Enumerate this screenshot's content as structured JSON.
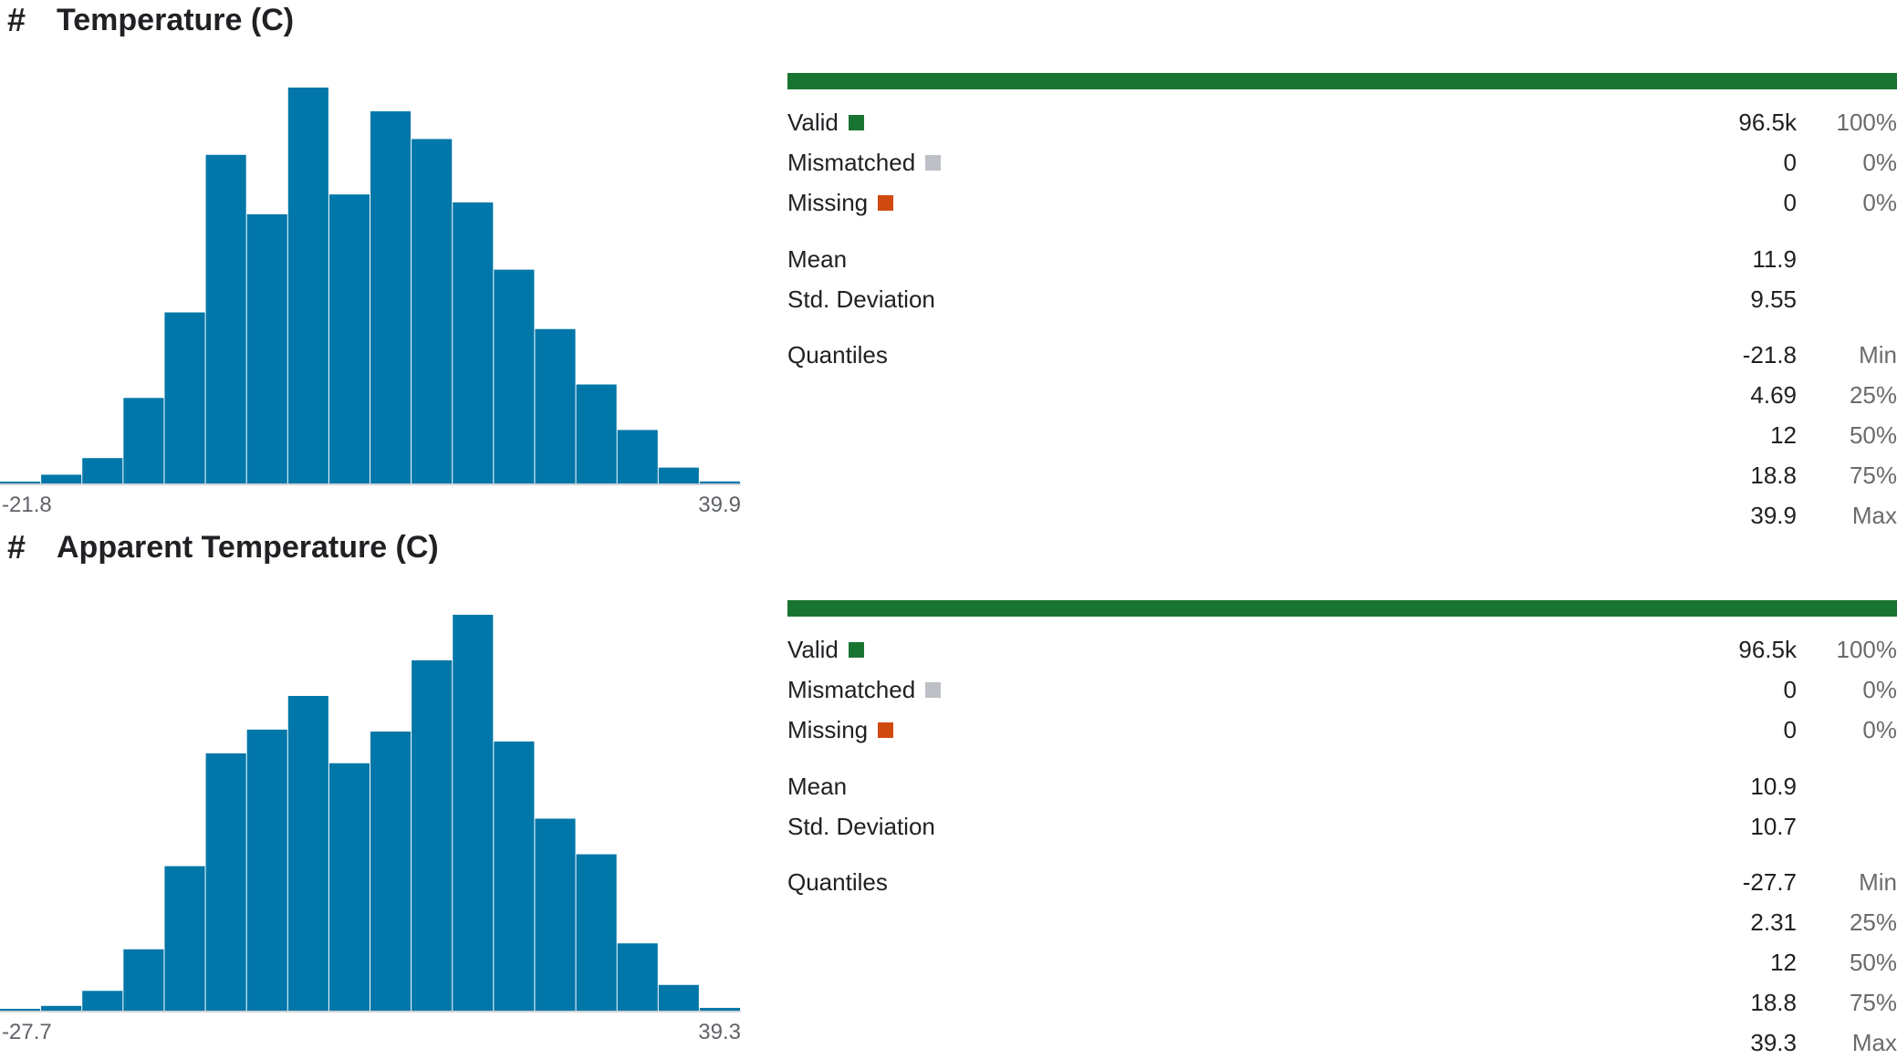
{
  "columns": [
    {
      "title": "Temperature (C)",
      "type_icon": "hash-icon",
      "range": {
        "min": "-21.8",
        "max": "39.9"
      },
      "histogram": [
        0.3,
        2.2,
        6.4,
        21.6,
        43.2,
        83.0,
        68.0,
        100.0,
        73.0,
        94.0,
        87.0,
        71.0,
        54.0,
        39.0,
        25.0,
        13.5,
        4.0,
        0.5
      ],
      "bar_color": "#0077a8",
      "stats": {
        "valid": {
          "label": "Valid",
          "value": "96.5k",
          "pct": "100%",
          "color": "#1a7431"
        },
        "mismatched": {
          "label": "Mismatched",
          "value": "0",
          "pct": "0%",
          "color": "#bdc1c6"
        },
        "missing": {
          "label": "Missing",
          "value": "0",
          "pct": "0%",
          "color": "#d04a10"
        },
        "mean": {
          "label": "Mean",
          "value": "11.9"
        },
        "std": {
          "label": "Std. Deviation",
          "value": "9.55"
        },
        "quantiles": {
          "label": "Quantiles",
          "items": [
            {
              "value": "-21.8",
              "name": "Min"
            },
            {
              "value": "4.69",
              "name": "25%"
            },
            {
              "value": "12",
              "name": "50%"
            },
            {
              "value": "18.8",
              "name": "75%"
            },
            {
              "value": "39.9",
              "name": "Max"
            }
          ]
        }
      }
    },
    {
      "title": "Apparent Temperature (C)",
      "type_icon": "hash-icon",
      "range": {
        "min": "-27.7",
        "max": "39.3"
      },
      "histogram": [
        0.3,
        1.2,
        5.0,
        15.5,
        36.5,
        65.0,
        71.0,
        79.5,
        62.5,
        70.5,
        88.5,
        100.0,
        68.0,
        48.5,
        39.5,
        17.0,
        6.5,
        0.7
      ],
      "bar_color": "#0077a8",
      "stats": {
        "valid": {
          "label": "Valid",
          "value": "96.5k",
          "pct": "100%",
          "color": "#1a7431"
        },
        "mismatched": {
          "label": "Mismatched",
          "value": "0",
          "pct": "0%",
          "color": "#bdc1c6"
        },
        "missing": {
          "label": "Missing",
          "value": "0",
          "pct": "0%",
          "color": "#d04a10"
        },
        "mean": {
          "label": "Mean",
          "value": "10.9"
        },
        "std": {
          "label": "Std. Deviation",
          "value": "10.7"
        },
        "quantiles": {
          "label": "Quantiles",
          "items": [
            {
              "value": "-27.7",
              "name": "Min"
            },
            {
              "value": "2.31",
              "name": "25%"
            },
            {
              "value": "12",
              "name": "50%"
            },
            {
              "value": "18.8",
              "name": "75%"
            },
            {
              "value": "39.3",
              "name": "Max"
            }
          ]
        }
      }
    }
  ]
}
